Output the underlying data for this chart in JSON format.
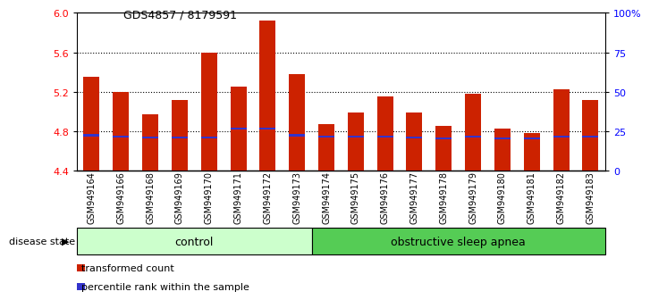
{
  "title": "GDS4857 / 8179591",
  "samples": [
    "GSM949164",
    "GSM949166",
    "GSM949168",
    "GSM949169",
    "GSM949170",
    "GSM949171",
    "GSM949172",
    "GSM949173",
    "GSM949174",
    "GSM949175",
    "GSM949176",
    "GSM949177",
    "GSM949178",
    "GSM949179",
    "GSM949180",
    "GSM949181",
    "GSM949182",
    "GSM949183"
  ],
  "bar_tops": [
    5.35,
    5.2,
    4.97,
    5.12,
    5.6,
    5.25,
    5.92,
    5.38,
    4.87,
    4.99,
    5.15,
    4.99,
    4.86,
    5.18,
    4.83,
    4.78,
    5.23,
    5.12
  ],
  "blue_markers": [
    4.76,
    4.75,
    4.74,
    4.74,
    4.74,
    4.83,
    4.83,
    4.76,
    4.75,
    4.75,
    4.75,
    4.74,
    4.73,
    4.75,
    4.73,
    4.73,
    4.75,
    4.75
  ],
  "ymin": 4.4,
  "ymax": 6.0,
  "yticks_left": [
    4.4,
    4.8,
    5.2,
    5.6,
    6.0
  ],
  "yticks_right": [
    0,
    25,
    50,
    75,
    100
  ],
  "bar_color": "#cc2200",
  "blue_color": "#3333cc",
  "group1_label": "control",
  "group2_label": "obstructive sleep apnea",
  "group1_color": "#ccffcc",
  "group2_color": "#55cc55",
  "group1_count": 8,
  "group2_count": 10,
  "disease_state_label": "disease state",
  "legend_red": "transformed count",
  "legend_blue": "percentile rank within the sample",
  "bar_width": 0.55,
  "dotted_lines": [
    4.8,
    5.2,
    5.6
  ]
}
